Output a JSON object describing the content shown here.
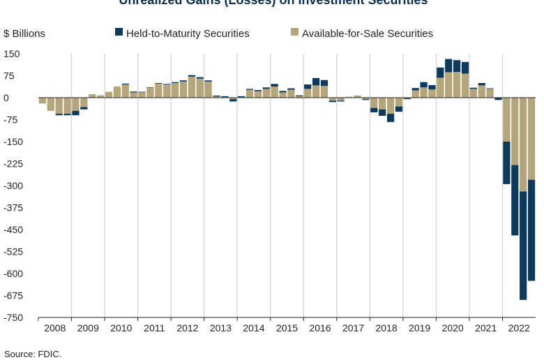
{
  "chart_data": {
    "type": "bar",
    "stacked": true,
    "title": "Unrealized Gains (Losses) on Investment Securities",
    "ylabel": "$ Billions",
    "ylim": [
      -750,
      150
    ],
    "yticks": [
      150,
      75,
      0,
      -75,
      -150,
      -225,
      -300,
      -375,
      -450,
      -525,
      -600,
      -675,
      -750
    ],
    "year_labels": [
      "2008",
      "2009",
      "2010",
      "2011",
      "2012",
      "2013",
      "2014",
      "2015",
      "2016",
      "2017",
      "2018",
      "2019",
      "2020",
      "2021",
      "2022"
    ],
    "grid": "vertical lines at year boundaries",
    "legend_position": "top",
    "source": "Source: FDIC.",
    "categories": [
      "2008Q1",
      "2008Q2",
      "2008Q3",
      "2008Q4",
      "2009Q1",
      "2009Q2",
      "2009Q3",
      "2009Q4",
      "2010Q1",
      "2010Q2",
      "2010Q3",
      "2010Q4",
      "2011Q1",
      "2011Q2",
      "2011Q3",
      "2011Q4",
      "2012Q1",
      "2012Q2",
      "2012Q3",
      "2012Q4",
      "2013Q1",
      "2013Q2",
      "2013Q3",
      "2013Q4",
      "2014Q1",
      "2014Q2",
      "2014Q3",
      "2014Q4",
      "2015Q1",
      "2015Q2",
      "2015Q3",
      "2015Q4",
      "2016Q1",
      "2016Q2",
      "2016Q3",
      "2016Q4",
      "2017Q1",
      "2017Q2",
      "2017Q3",
      "2017Q4",
      "2018Q1",
      "2018Q2",
      "2018Q3",
      "2018Q4",
      "2019Q1",
      "2019Q2",
      "2019Q3",
      "2019Q4",
      "2020Q1",
      "2020Q2",
      "2020Q3",
      "2020Q4",
      "2021Q1",
      "2021Q2",
      "2021Q3",
      "2021Q4",
      "2022Q1",
      "2022Q2",
      "2022Q3",
      "2022Q4"
    ],
    "series": [
      {
        "name": "Held-to-Maturity Securities",
        "color": "#0b3a5c",
        "values": [
          0,
          0,
          -5,
          -5,
          -15,
          -8,
          0,
          0,
          0,
          0,
          3,
          3,
          2,
          1,
          2,
          2,
          3,
          4,
          5,
          5,
          4,
          -3,
          -3,
          -8,
          -3,
          3,
          4,
          5,
          9,
          5,
          5,
          3,
          15,
          25,
          20,
          -5,
          -3,
          0,
          1,
          -3,
          -15,
          -22,
          -28,
          -18,
          -3,
          8,
          18,
          15,
          35,
          45,
          40,
          40,
          4,
          8,
          2,
          -8,
          -145,
          -240,
          -370,
          -345
        ]
      },
      {
        "name": "Available-for-Sale Securities",
        "color": "#b5a57a",
        "values": [
          -20,
          -45,
          -55,
          -55,
          -45,
          -32,
          12,
          8,
          20,
          38,
          45,
          18,
          18,
          35,
          48,
          45,
          50,
          55,
          72,
          65,
          55,
          7,
          5,
          -5,
          5,
          27,
          22,
          30,
          38,
          18,
          27,
          5,
          30,
          42,
          40,
          -10,
          -10,
          3,
          5,
          -5,
          -35,
          -40,
          -55,
          -30,
          -2,
          25,
          35,
          28,
          68,
          87,
          88,
          82,
          30,
          42,
          30,
          0,
          -150,
          -230,
          -320,
          -280
        ]
      }
    ]
  }
}
